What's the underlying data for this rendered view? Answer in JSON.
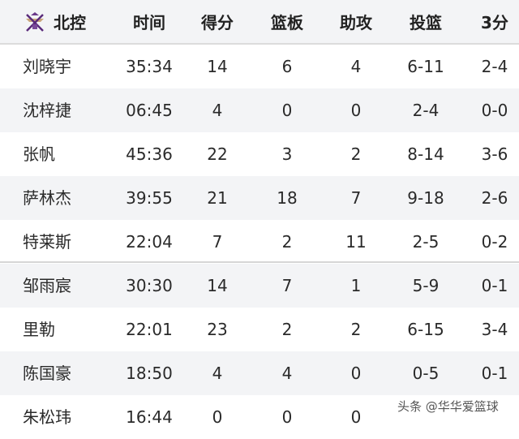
{
  "header": {
    "team": "北控",
    "cols": [
      "时间",
      "得分",
      "篮板",
      "助攻",
      "投篮",
      "3分"
    ]
  },
  "rows": [
    {
      "name": "刘晓宇",
      "min": "35:34",
      "pts": "14",
      "reb": "6",
      "ast": "4",
      "fg": "6-11",
      "tp": "2-4"
    },
    {
      "name": "沈梓捷",
      "min": "06:45",
      "pts": "4",
      "reb": "0",
      "ast": "0",
      "fg": "2-4",
      "tp": "0-0"
    },
    {
      "name": "张帆",
      "min": "45:36",
      "pts": "22",
      "reb": "3",
      "ast": "2",
      "fg": "8-14",
      "tp": "3-6"
    },
    {
      "name": "萨林杰",
      "min": "39:55",
      "pts": "21",
      "reb": "18",
      "ast": "7",
      "fg": "9-18",
      "tp": "2-6"
    },
    {
      "name": "特莱斯",
      "min": "22:04",
      "pts": "7",
      "reb": "2",
      "ast": "11",
      "fg": "2-5",
      "tp": "0-2"
    },
    {
      "name": "邹雨宸",
      "min": "30:30",
      "pts": "14",
      "reb": "7",
      "ast": "1",
      "fg": "5-9",
      "tp": "0-1"
    },
    {
      "name": "里勒",
      "min": "22:01",
      "pts": "23",
      "reb": "2",
      "ast": "2",
      "fg": "6-15",
      "tp": "3-4"
    },
    {
      "name": "陈国豪",
      "min": "18:50",
      "pts": "4",
      "reb": "4",
      "ast": "0",
      "fg": "0-5",
      "tp": "0-1"
    },
    {
      "name": "朱松玮",
      "min": "16:44",
      "pts": "0",
      "reb": "0",
      "ast": "0",
      "fg": "",
      "tp": ""
    }
  ],
  "watermark": "头条 @华华爱篮球"
}
